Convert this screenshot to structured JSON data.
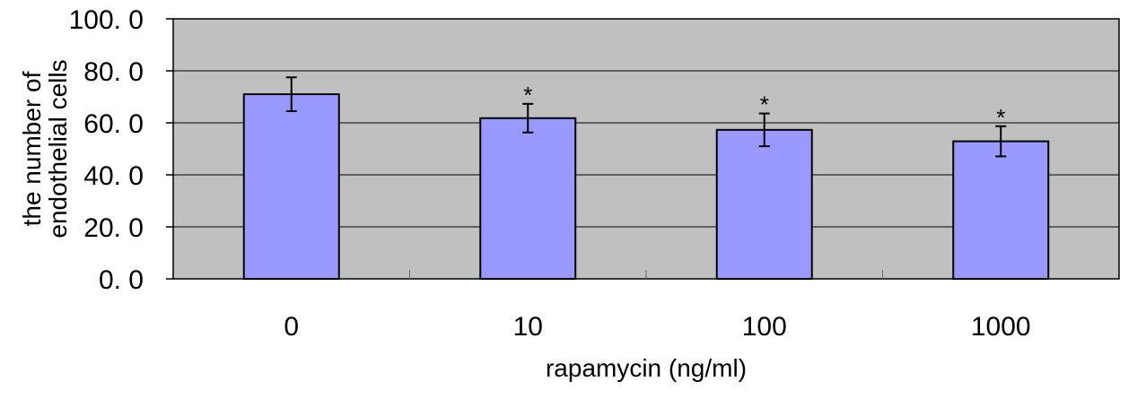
{
  "chart_data": {
    "type": "bar",
    "categories": [
      "0",
      "10",
      "100",
      "1000"
    ],
    "values": [
      71.0,
      61.8,
      57.3,
      52.9
    ],
    "error": [
      6.5,
      5.5,
      6.3,
      5.8
    ],
    "significance": [
      "",
      "*",
      "*",
      "*"
    ],
    "title": "",
    "xlabel": "rapamycin (ng/ml)",
    "ylabel_lines": [
      "the  number  of",
      "endothelial   cells"
    ],
    "ylim": [
      0,
      100
    ],
    "yticks": [
      0,
      20,
      40,
      60,
      80,
      100
    ],
    "ytick_labels": [
      "0. 0",
      "20. 0",
      "40. 0",
      "60. 0",
      "80. 0",
      "100. 0"
    ],
    "grid": true,
    "legend": "none",
    "colors": {
      "bar_fill": "#9999ff",
      "plot_background": "#c0c0c0",
      "gridline": "#000000"
    }
  }
}
